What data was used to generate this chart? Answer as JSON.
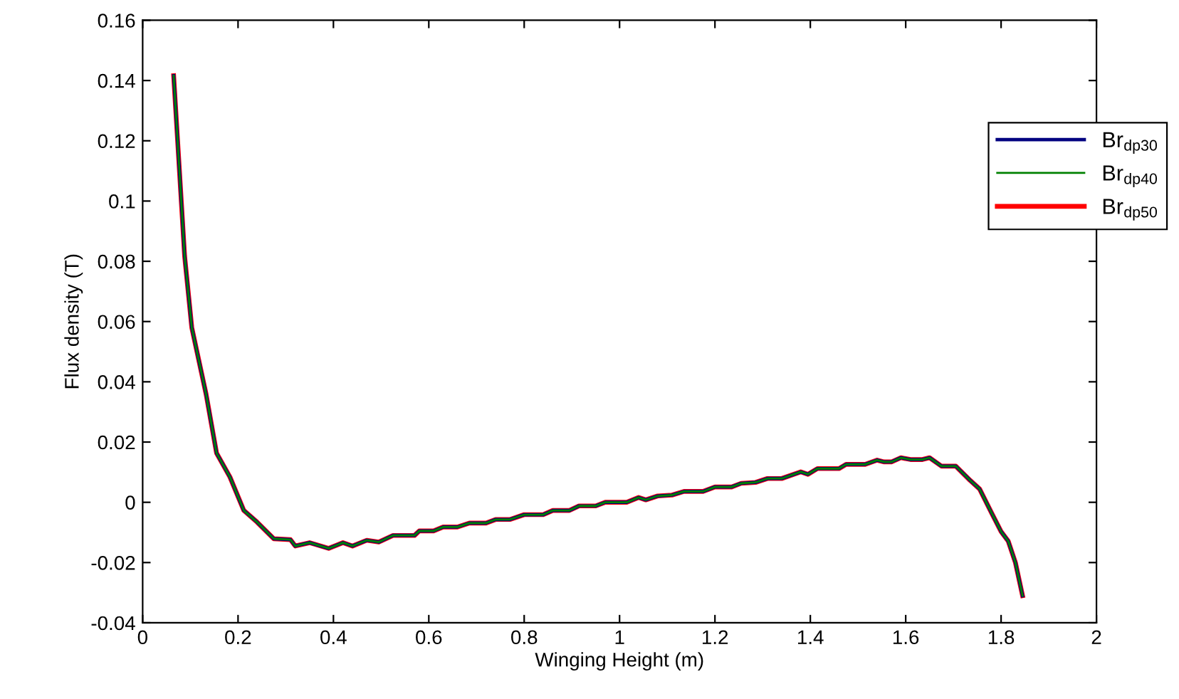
{
  "chart_data": {
    "type": "line",
    "xlabel": "Winging Height (m)",
    "ylabel": "Flux density (T)",
    "x": [
      0.065,
      0.088,
      0.103,
      0.133,
      0.155,
      0.183,
      0.212,
      0.24,
      0.275,
      0.31,
      0.32,
      0.35,
      0.39,
      0.42,
      0.44,
      0.47,
      0.495,
      0.525,
      0.57,
      0.58,
      0.61,
      0.63,
      0.66,
      0.685,
      0.72,
      0.74,
      0.77,
      0.8,
      0.84,
      0.86,
      0.895,
      0.915,
      0.95,
      0.97,
      1.015,
      1.04,
      1.055,
      1.08,
      1.11,
      1.135,
      1.175,
      1.2,
      1.235,
      1.255,
      1.285,
      1.31,
      1.34,
      1.38,
      1.395,
      1.415,
      1.46,
      1.475,
      1.515,
      1.54,
      1.555,
      1.57,
      1.59,
      1.61,
      1.635,
      1.65,
      1.675,
      1.705,
      1.735,
      1.755,
      1.78,
      1.8,
      1.815,
      1.83,
      1.845
    ],
    "series": [
      {
        "name": "Br$_{dp30}$",
        "color": "#000080",
        "values": [
          0.1416,
          0.0817,
          0.058,
          0.0359,
          0.0163,
          0.0084,
          -0.0027,
          -0.0066,
          -0.0121,
          -0.0124,
          -0.0145,
          -0.0134,
          -0.0153,
          -0.0134,
          -0.0145,
          -0.0126,
          -0.0132,
          -0.011,
          -0.011,
          -0.0095,
          -0.0095,
          -0.0082,
          -0.0082,
          -0.0069,
          -0.0069,
          -0.0057,
          -0.0057,
          -0.0041,
          -0.0041,
          -0.0027,
          -0.0027,
          -0.0012,
          -0.0012,
          0.0,
          0.0,
          0.0016,
          0.0008,
          0.0021,
          0.0024,
          0.0036,
          0.0036,
          0.0051,
          0.0051,
          0.0063,
          0.0066,
          0.0079,
          0.0079,
          0.0101,
          0.0093,
          0.0112,
          0.0112,
          0.0126,
          0.0126,
          0.014,
          0.0134,
          0.0134,
          0.0148,
          0.0142,
          0.0142,
          0.0148,
          0.012,
          0.012,
          0.0073,
          0.0044,
          -0.0035,
          -0.0097,
          -0.0129,
          -0.02,
          -0.031
        ]
      },
      {
        "name": "Br$_{dp40}$",
        "color": "#008000",
        "values": [
          0.1416,
          0.0817,
          0.058,
          0.0359,
          0.0163,
          0.0084,
          -0.0027,
          -0.0066,
          -0.0121,
          -0.0124,
          -0.0145,
          -0.0134,
          -0.0153,
          -0.0134,
          -0.0145,
          -0.0126,
          -0.0132,
          -0.011,
          -0.011,
          -0.0095,
          -0.0095,
          -0.0082,
          -0.0082,
          -0.0069,
          -0.0069,
          -0.0057,
          -0.0057,
          -0.0041,
          -0.0041,
          -0.0027,
          -0.0027,
          -0.0012,
          -0.0012,
          0.0,
          0.0,
          0.0016,
          0.0008,
          0.0021,
          0.0024,
          0.0036,
          0.0036,
          0.0051,
          0.0051,
          0.0063,
          0.0066,
          0.0079,
          0.0079,
          0.0101,
          0.0093,
          0.0112,
          0.0112,
          0.0126,
          0.0126,
          0.014,
          0.0134,
          0.0134,
          0.0148,
          0.0142,
          0.0142,
          0.0148,
          0.012,
          0.012,
          0.0073,
          0.0044,
          -0.0035,
          -0.0097,
          -0.0129,
          -0.02,
          -0.031
        ]
      },
      {
        "name": "Br$_{dp50}$",
        "color": "#ff0000",
        "values": [
          0.1416,
          0.0817,
          0.058,
          0.0359,
          0.0163,
          0.0084,
          -0.0027,
          -0.0066,
          -0.0121,
          -0.0124,
          -0.0145,
          -0.0134,
          -0.0153,
          -0.0134,
          -0.0145,
          -0.0126,
          -0.0132,
          -0.011,
          -0.011,
          -0.0095,
          -0.0095,
          -0.0082,
          -0.0082,
          -0.0069,
          -0.0069,
          -0.0057,
          -0.0057,
          -0.0041,
          -0.0041,
          -0.0027,
          -0.0027,
          -0.0012,
          -0.0012,
          0.0,
          0.0,
          0.0016,
          0.0008,
          0.0021,
          0.0024,
          0.0036,
          0.0036,
          0.0051,
          0.0051,
          0.0063,
          0.0066,
          0.0079,
          0.0079,
          0.0101,
          0.0093,
          0.0112,
          0.0112,
          0.0126,
          0.0126,
          0.014,
          0.0134,
          0.0134,
          0.0148,
          0.0142,
          0.0142,
          0.0148,
          0.012,
          0.012,
          0.0073,
          0.0044,
          -0.0035,
          -0.0097,
          -0.0129,
          -0.02,
          -0.031
        ]
      }
    ],
    "xlim": [
      0,
      2
    ],
    "xticks": [
      0,
      0.2,
      0.4,
      0.6,
      0.8,
      1,
      1.2,
      1.4,
      1.6,
      1.8,
      2
    ],
    "ylim": [
      -0.04,
      0.16
    ],
    "yticks": [
      -0.04,
      -0.02,
      0,
      0.02,
      0.04,
      0.06,
      0.08,
      0.1,
      0.12,
      0.14,
      0.16
    ],
    "grid": false,
    "legend": "top right",
    "marker": "none",
    "line_style": "solid"
  }
}
